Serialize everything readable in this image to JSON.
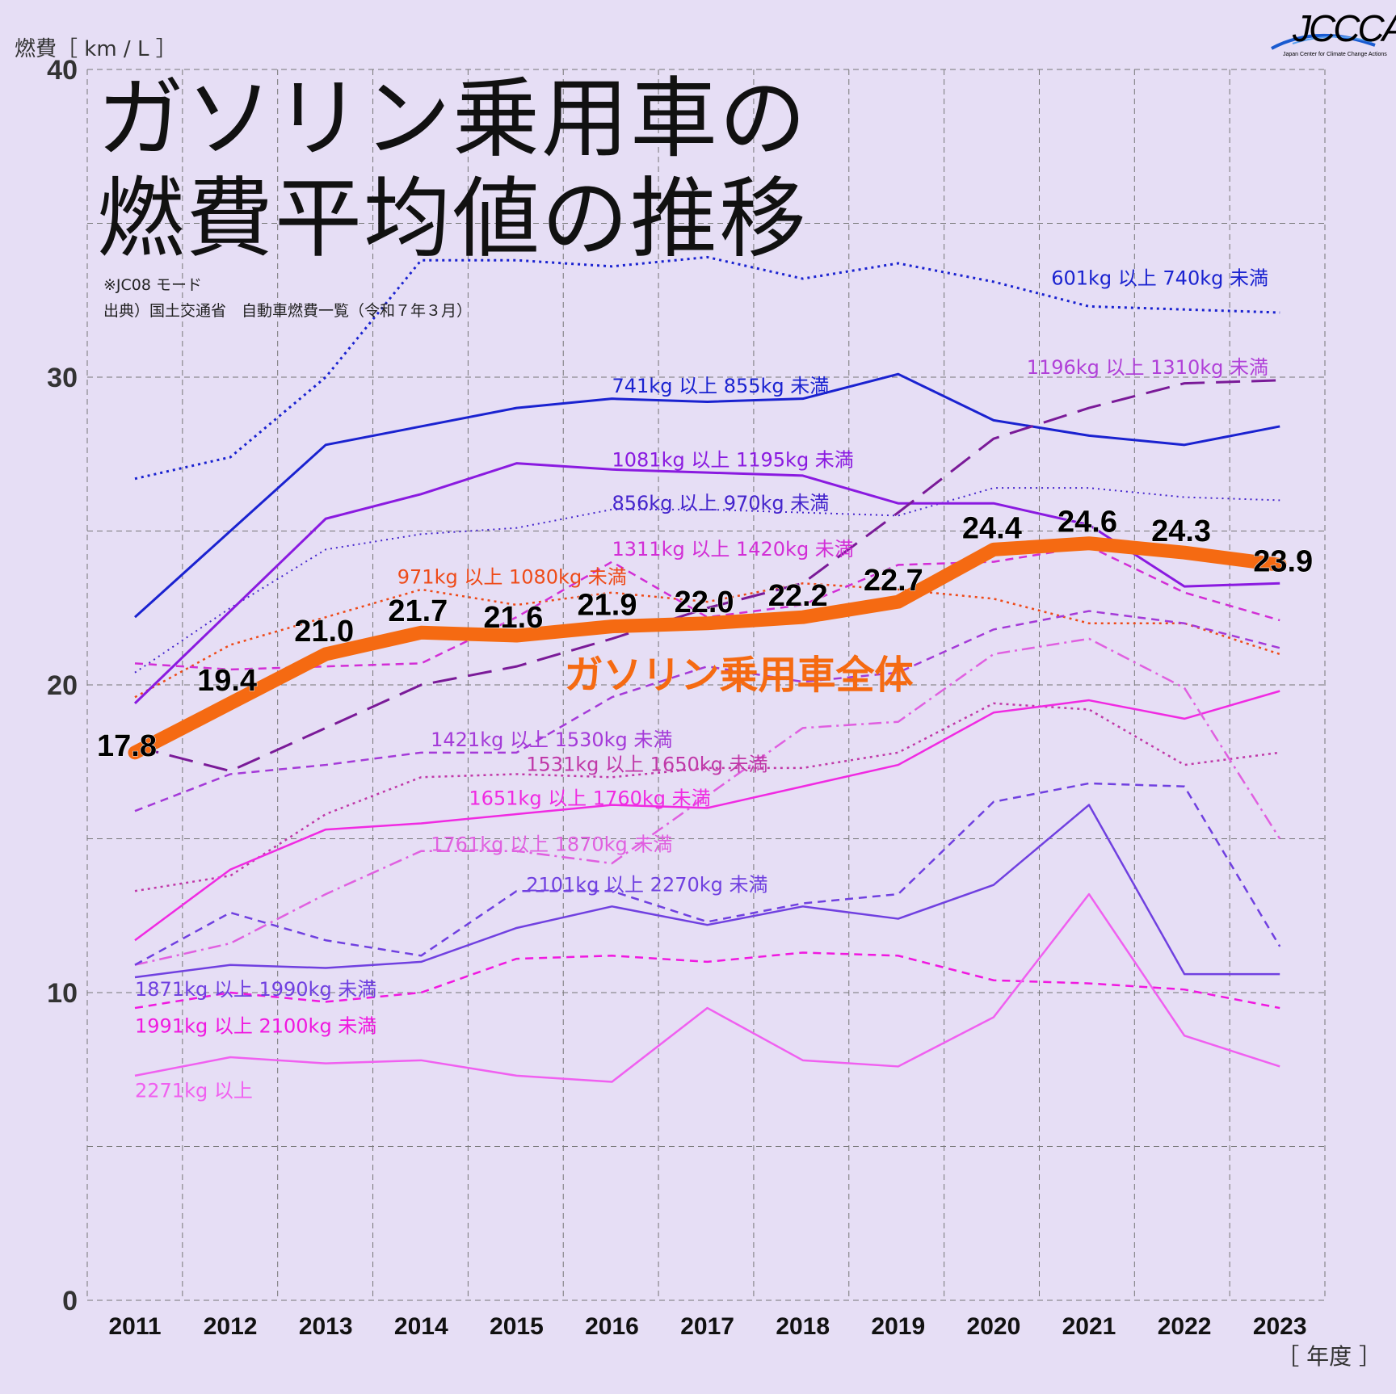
{
  "header": {
    "y_axis_label": "燃費［ km / L ］",
    "x_axis_unit": "［ 年度 ］",
    "title_line1": "ガソリン乗用車の",
    "title_line2": "燃費平均値の推移",
    "note_mode": "※JC08 モード",
    "note_source": "出典）国土交通省　自動車燃費一覧（令和７年３月）",
    "logo_text": "JCCCA",
    "logo_subtitle": "Japan Center for Climate Change Actions"
  },
  "chart_data": {
    "type": "line",
    "xlabel": "［ 年度 ］",
    "ylabel": "燃費［ km / L ］",
    "x": [
      "2011",
      "2012",
      "2013",
      "2014",
      "2015",
      "2016",
      "2017",
      "2018",
      "2019",
      "2020",
      "2021",
      "2022",
      "2023"
    ],
    "ylim": [
      0,
      40
    ],
    "yticks": [
      0,
      10,
      20,
      30,
      40
    ],
    "grid": true,
    "series": [
      {
        "name": "601kg 以上 740kg 未満",
        "color": "#1a22d0",
        "dash": "dotted",
        "width": 3,
        "values": [
          26.7,
          27.4,
          30.0,
          33.8,
          33.8,
          33.6,
          33.9,
          33.2,
          33.7,
          33.1,
          32.3,
          32.2,
          32.1
        ]
      },
      {
        "name": "741kg 以上 855kg 未満",
        "color": "#1a22d0",
        "dash": "solid",
        "width": 3,
        "values": [
          22.2,
          25.0,
          27.8,
          28.4,
          29.0,
          29.3,
          29.2,
          29.3,
          30.1,
          28.6,
          28.1,
          27.8,
          28.4
        ]
      },
      {
        "name": "856kg 以上 970kg 未満",
        "color": "#4424cc",
        "dash": "dotted-thin",
        "width": 2,
        "values": [
          20.4,
          22.5,
          24.4,
          24.9,
          25.1,
          25.7,
          25.7,
          25.6,
          25.5,
          26.4,
          26.4,
          26.1,
          26.0
        ]
      },
      {
        "name": "971kg 以上 1080kg 未満",
        "color": "#ee4a18",
        "dash": "dotted",
        "width": 2.5,
        "values": [
          19.6,
          21.3,
          22.2,
          23.1,
          22.6,
          23.0,
          22.7,
          23.3,
          23.1,
          22.8,
          22.0,
          22.0,
          21.0
        ]
      },
      {
        "name": "1081kg 以上 1195kg 未満",
        "color": "#8a1ae0",
        "dash": "solid",
        "width": 3,
        "values": [
          19.4,
          22.4,
          25.4,
          26.2,
          27.2,
          27.0,
          26.9,
          26.8,
          25.9,
          25.9,
          25.2,
          23.2,
          23.3
        ]
      },
      {
        "name": "1196kg 以上 1310kg 未満",
        "color": "#7a1a98",
        "dash": "longdash",
        "width": 3,
        "values": [
          18.0,
          17.2,
          18.6,
          20.0,
          20.6,
          21.5,
          22.5,
          23.3,
          25.6,
          28.0,
          29.0,
          29.8,
          29.9
        ]
      },
      {
        "name": "1311kg 以上 1420kg 未満",
        "color": "#d22ed6",
        "dash": "dashed",
        "width": 2.5,
        "values": [
          20.7,
          20.5,
          20.6,
          20.7,
          22.2,
          24.0,
          22.2,
          22.6,
          23.9,
          24.0,
          24.5,
          23.0,
          22.1
        ]
      },
      {
        "name": "1421kg 以上 1530kg 未満",
        "color": "#a43ad8",
        "dash": "dashed",
        "width": 2.5,
        "values": [
          15.9,
          17.1,
          17.4,
          17.8,
          17.8,
          19.6,
          20.6,
          20.1,
          20.4,
          21.8,
          22.4,
          22.0,
          21.2
        ]
      },
      {
        "name": "1531kg 以上 1650kg 未満",
        "color": "#c038a8",
        "dash": "dotted",
        "width": 2.5,
        "values": [
          13.3,
          13.8,
          15.8,
          17.0,
          17.1,
          17.0,
          17.3,
          17.3,
          17.8,
          19.4,
          19.2,
          17.4,
          17.8
        ]
      },
      {
        "name": "1651kg 以上 1760kg 未満",
        "color": "#f02ae2",
        "dash": "solid",
        "width": 2.5,
        "values": [
          11.7,
          14.0,
          15.3,
          15.5,
          15.8,
          16.1,
          16.0,
          16.7,
          17.4,
          19.1,
          19.5,
          18.9,
          19.8
        ]
      },
      {
        "name": "1761kg 以上 1870kg 未満",
        "color": "#e060e0",
        "dash": "dashdot",
        "width": 2.5,
        "values": [
          10.9,
          11.6,
          13.2,
          14.6,
          14.6,
          14.2,
          16.4,
          18.6,
          18.8,
          21.0,
          21.5,
          19.9,
          15.0
        ]
      },
      {
        "name": "1871kg 以上 1990kg 未満",
        "color": "#7040e0",
        "dash": "solid",
        "width": 2.5,
        "values": [
          10.5,
          10.9,
          10.8,
          11.0,
          12.1,
          12.8,
          12.2,
          12.8,
          12.4,
          13.5,
          16.1,
          10.6,
          10.6
        ]
      },
      {
        "name": "1991kg 以上 2100kg 未満",
        "color": "#f018e0",
        "dash": "dashed",
        "width": 2.5,
        "values": [
          9.5,
          10.0,
          9.7,
          10.0,
          11.1,
          11.2,
          11.0,
          11.3,
          11.2,
          10.4,
          10.3,
          10.1,
          9.5
        ]
      },
      {
        "name": "2101kg 以上 2270kg 未満",
        "color": "#7040e0",
        "dash": "dashed",
        "width": 2.5,
        "values": [
          10.9,
          12.6,
          11.7,
          11.2,
          13.3,
          13.3,
          12.3,
          12.9,
          13.2,
          16.2,
          16.8,
          16.7,
          11.5
        ]
      },
      {
        "name": "2271kg 以上",
        "color": "#f060f0",
        "dash": "solid",
        "width": 2.5,
        "values": [
          7.3,
          7.9,
          7.7,
          7.8,
          7.3,
          7.1,
          9.5,
          7.8,
          7.6,
          9.2,
          13.2,
          8.6,
          7.6
        ]
      },
      {
        "name": "ガソリン乗用車全体",
        "color": "#f56a12",
        "dash": "solid",
        "width": 17,
        "emphasis": true,
        "values": [
          17.8,
          19.4,
          21.0,
          21.7,
          21.6,
          21.9,
          22.0,
          22.2,
          22.7,
          24.4,
          24.6,
          24.3,
          23.9
        ],
        "data_labels": [
          "17.8",
          "19.4",
          "21.0",
          "21.7",
          "21.6",
          "21.9",
          "22.0",
          "22.2",
          "22.7",
          "24.4",
          "24.6",
          "24.3",
          "23.9"
        ]
      }
    ],
    "series_labels": [
      {
        "series": 0,
        "text": "601kg 以上 740kg 未満",
        "at_x": 11.5,
        "at_y": 33.0,
        "color": "#1a22d0"
      },
      {
        "series": 1,
        "text": "741kg 以上 855kg 未満",
        "at_x": 5.0,
        "at_y": 29.5,
        "color": "#1a22d0"
      },
      {
        "series": 4,
        "text": "1081kg 以上 1195kg 未満",
        "at_x": 5.0,
        "at_y": 27.1,
        "color": "#8a1ae0"
      },
      {
        "series": 2,
        "text": "856kg 以上 970kg 未満",
        "at_x": 5.0,
        "at_y": 25.7,
        "color": "#4424cc"
      },
      {
        "series": 6,
        "text": "1311kg 以上 1420kg 未満",
        "at_x": 5.0,
        "at_y": 24.2,
        "color": "#d22ed6"
      },
      {
        "series": 3,
        "text": "971kg 以上 1080kg 未満",
        "at_x": 2.75,
        "at_y": 23.3,
        "color": "#ee4a18"
      },
      {
        "series": 5,
        "text": "1196kg 以上 1310kg 未満",
        "at_x": 11.6,
        "at_y": 30.1,
        "color": "#b040d8"
      },
      {
        "series": 7,
        "text": "1421kg 以上 1530kg 未満",
        "at_x": 3.1,
        "at_y": 18.0,
        "color": "#a43ad8"
      },
      {
        "series": 8,
        "text": "1531kg 以上 1650kg 未満",
        "at_x": 4.1,
        "at_y": 17.2,
        "color": "#c038a8"
      },
      {
        "series": 9,
        "text": "1651kg 以上 1760kg 未満",
        "at_x": 3.5,
        "at_y": 16.1,
        "color": "#f02ae2"
      },
      {
        "series": 10,
        "text": "1761kg 以上 1870kg 未満",
        "at_x": 3.1,
        "at_y": 14.6,
        "color": "#e060e0"
      },
      {
        "series": 13,
        "text": "2101kg 以上 2270kg 未満",
        "at_x": 4.1,
        "at_y": 13.3,
        "color": "#7040e0"
      },
      {
        "series": 11,
        "text": "1871kg 以上 1990kg 未満",
        "at_x": 0.0,
        "at_y": 9.9,
        "color": "#7040e0"
      },
      {
        "series": 12,
        "text": "1991kg 以上 2100kg 未満",
        "at_x": 0.0,
        "at_y": 8.7,
        "color": "#f018e0"
      },
      {
        "series": 14,
        "text": "2271kg 以上",
        "at_x": 0.0,
        "at_y": 6.6,
        "color": "#f060f0"
      },
      {
        "series": 15,
        "text": "ガソリン乗用車全体",
        "at_x": 4.5,
        "at_y": 19.9,
        "color": "#f56a12",
        "big": true
      }
    ]
  }
}
